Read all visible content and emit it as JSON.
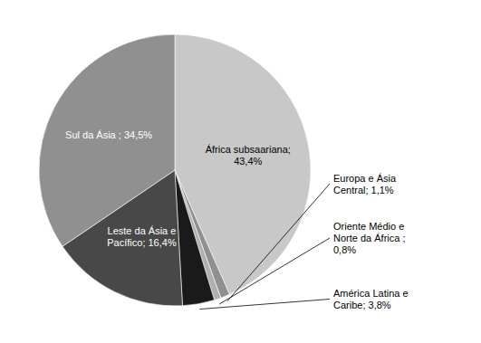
{
  "chart_data": {
    "type": "pie",
    "categories": [
      "África subsaariana;\n43,4%",
      "Europa e Ásia\nCentral; 1,1%",
      "Oriente Médio e\nNorte da África ;\n0,8%",
      "América Latina e\nCaribe; 3,8%",
      "Leste da Ásia e\nPacífico; 16,4%",
      "Sul da Ásia ; 34,5%"
    ],
    "values": [
      43.4,
      1.1,
      0.8,
      3.8,
      16.4,
      34.5
    ],
    "colors": [
      "#c8c8c8",
      "#909090",
      "#b0b0b0",
      "#1a1a1a",
      "#484848",
      "#909090"
    ]
  }
}
